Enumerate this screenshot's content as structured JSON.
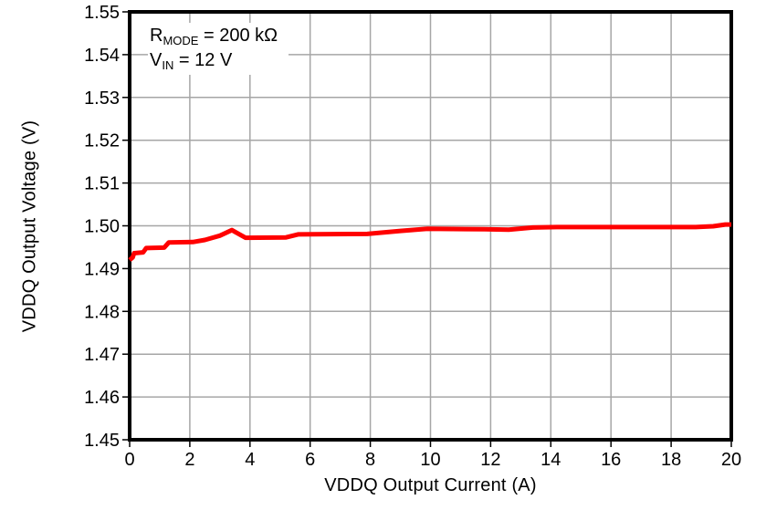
{
  "colors": {
    "line": "#ff0000",
    "grid": "#a6a6a6",
    "axis": "#000000",
    "background": "#ffffff",
    "text": "#000000"
  },
  "chart_data": {
    "type": "line",
    "title": "",
    "xlabel": "VDDQ Output Current (A)",
    "ylabel": "VDDQ Output Voltage (V)",
    "xlim": [
      0,
      20
    ],
    "ylim": [
      1.45,
      1.55
    ],
    "x_ticks": [
      0,
      2,
      4,
      6,
      8,
      10,
      12,
      14,
      16,
      18,
      20
    ],
    "y_ticks": [
      1.45,
      1.46,
      1.47,
      1.48,
      1.49,
      1.5,
      1.51,
      1.52,
      1.53,
      1.54,
      1.55
    ],
    "y_tick_decimals": 2,
    "grid": true,
    "legend_position": "none",
    "annotation": {
      "line1": {
        "base": "R",
        "sub": "MODE",
        "rest": " = 200 kΩ"
      },
      "line2": {
        "base": "V",
        "sub": "IN",
        "rest": " = 12 V"
      }
    },
    "series": [
      {
        "name": "vddq-output-voltage",
        "color": "#ff0000",
        "points": [
          [
            0.0,
            1.492
          ],
          [
            0.1,
            1.4926
          ],
          [
            0.15,
            1.4936
          ],
          [
            0.45,
            1.4938
          ],
          [
            0.55,
            1.4948
          ],
          [
            1.15,
            1.4949
          ],
          [
            1.3,
            1.4961
          ],
          [
            2.1,
            1.4962
          ],
          [
            2.5,
            1.4967
          ],
          [
            3.0,
            1.4977
          ],
          [
            3.4,
            1.499
          ],
          [
            3.85,
            1.4972
          ],
          [
            5.2,
            1.4973
          ],
          [
            5.6,
            1.498
          ],
          [
            7.9,
            1.4981
          ],
          [
            9.0,
            1.4988
          ],
          [
            9.9,
            1.4993
          ],
          [
            11.8,
            1.4992
          ],
          [
            12.6,
            1.4991
          ],
          [
            13.4,
            1.4996
          ],
          [
            14.2,
            1.4997
          ],
          [
            18.8,
            1.4997
          ],
          [
            19.4,
            1.4999
          ],
          [
            19.8,
            1.5003
          ],
          [
            20.0,
            1.5003
          ]
        ]
      }
    ]
  }
}
